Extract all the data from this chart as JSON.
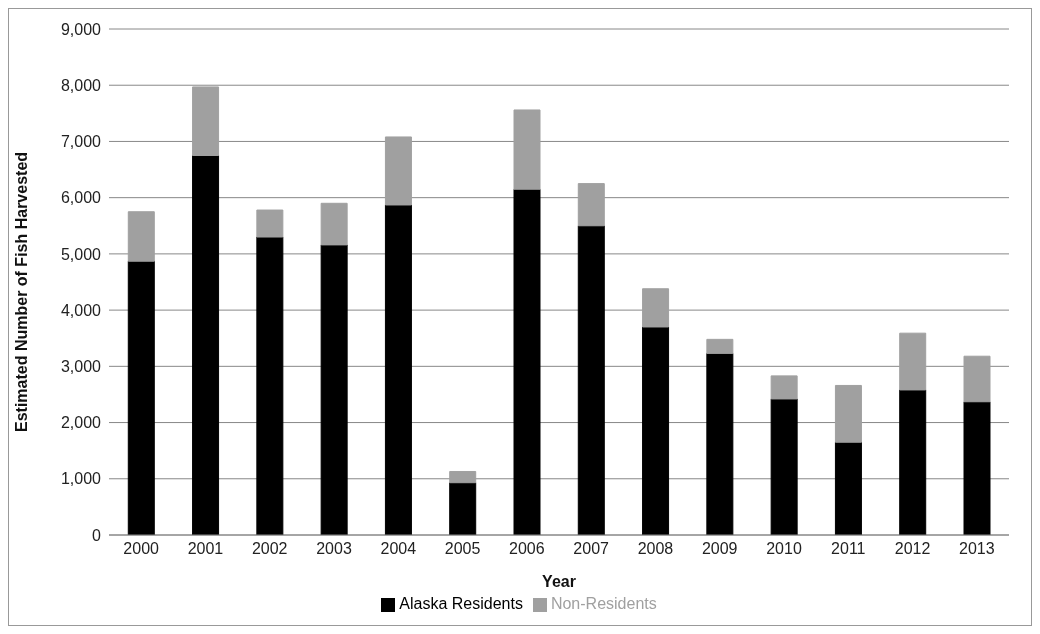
{
  "chart_data": {
    "type": "bar",
    "stacked": true,
    "xlabel": "Year",
    "ylabel": "Estimated Number of Fish Harvested",
    "categories": [
      "2000",
      "2001",
      "2002",
      "2003",
      "2004",
      "2005",
      "2006",
      "2007",
      "2008",
      "2009",
      "2010",
      "2011",
      "2012",
      "2013"
    ],
    "series": [
      {
        "name": "Alaska Residents",
        "color": "#000000",
        "values": [
          4870,
          6750,
          5300,
          5160,
          5870,
          930,
          6150,
          5500,
          3700,
          3230,
          2420,
          1650,
          2580,
          2370
        ]
      },
      {
        "name": "Non-Residents",
        "color": "#a0a0a0",
        "values": [
          880,
          1220,
          480,
          740,
          1210,
          200,
          1410,
          750,
          680,
          250,
          410,
          1010,
          1010,
          810
        ]
      }
    ],
    "ylim": [
      0,
      9000
    ],
    "yticks": [
      0,
      {
        "value": 1000,
        "label": "1,000"
      },
      {
        "value": 2000,
        "label": "2,000"
      },
      {
        "value": 3000,
        "label": "3,000"
      },
      {
        "value": 4000,
        "label": "4,000"
      },
      {
        "value": 5000,
        "label": "5,000"
      },
      {
        "value": 6000,
        "label": "6,000"
      },
      {
        "value": 7000,
        "label": "7,000"
      },
      {
        "value": 8000,
        "label": "8,000"
      },
      {
        "value": 9000,
        "label": "9,000"
      }
    ],
    "grid": "y",
    "legend": "bottom"
  }
}
